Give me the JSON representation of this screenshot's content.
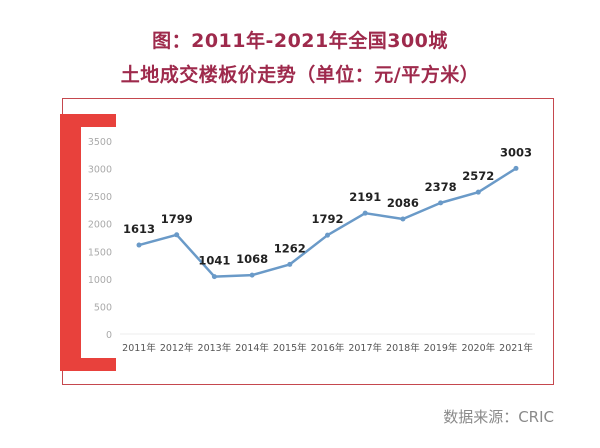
{
  "chart_data": {
    "type": "line",
    "title": "图：2011年-2021年全国300城",
    "subtitle": "土地成交楼板价走势（单位：元/平方米）",
    "categories": [
      "2011年",
      "2012年",
      "2013年",
      "2014年",
      "2015年",
      "2016年",
      "2017年",
      "2018年",
      "2019年",
      "2020年",
      "2021年"
    ],
    "series": [
      {
        "values": [
          1613,
          1799,
          1041,
          1068,
          1262,
          1792,
          2191,
          2086,
          2378,
          2572,
          3003
        ]
      }
    ],
    "yticks": [
      "0",
      "500",
      "1000",
      "1500",
      "2000",
      "2500",
      "3000",
      "3500"
    ],
    "ylim": [
      0,
      3500
    ],
    "grid": false,
    "line_color": "#6a9ac8",
    "accent_color": "#e8413c",
    "title_color": "#9e2a4c"
  },
  "source": "数据来源：CRIC"
}
